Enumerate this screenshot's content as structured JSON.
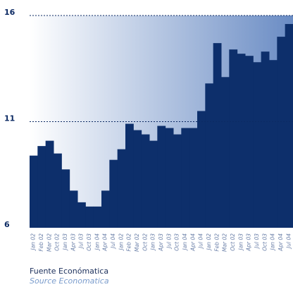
{
  "chart_data": {
    "type": "step-area",
    "categories": [
      "Jan 02",
      "Feb 02",
      "Mar 02",
      "Oct 02",
      "Jan 03",
      "Apr 03",
      "Jul 03",
      "Oct 03",
      "Jan 04",
      "Apr 04",
      "Jul 04",
      "Jan 02",
      "Feb 02",
      "Mar 02",
      "Oct 02",
      "Jan 03",
      "Apr 03",
      "Jul 03",
      "Oct 03",
      "Jan 04",
      "Apr 04",
      "Jul 04",
      "Jan 02",
      "Feb 02",
      "Mar 02",
      "Oct 02",
      "Jan 03",
      "Apr 03",
      "Jul 03",
      "Oct 03",
      "Jan 04",
      "Apr 04",
      "Jul 04"
    ],
    "values": [
      9.4,
      9.85,
      10.1,
      9.5,
      8.75,
      7.75,
      7.2,
      7.0,
      7.0,
      7.75,
      9.2,
      9.7,
      10.9,
      10.6,
      10.4,
      10.1,
      10.8,
      10.7,
      10.4,
      10.7,
      10.7,
      11.5,
      12.8,
      14.7,
      13.1,
      14.4,
      14.2,
      14.1,
      13.8,
      14.3,
      13.9,
      15.0,
      15.6
    ],
    "color": "#0d2f6b",
    "ylim": [
      6,
      16
    ],
    "yticks": [
      6,
      11,
      16
    ],
    "grid": true,
    "source": "Fuente Económatica",
    "source_en": "Source Economatica"
  }
}
